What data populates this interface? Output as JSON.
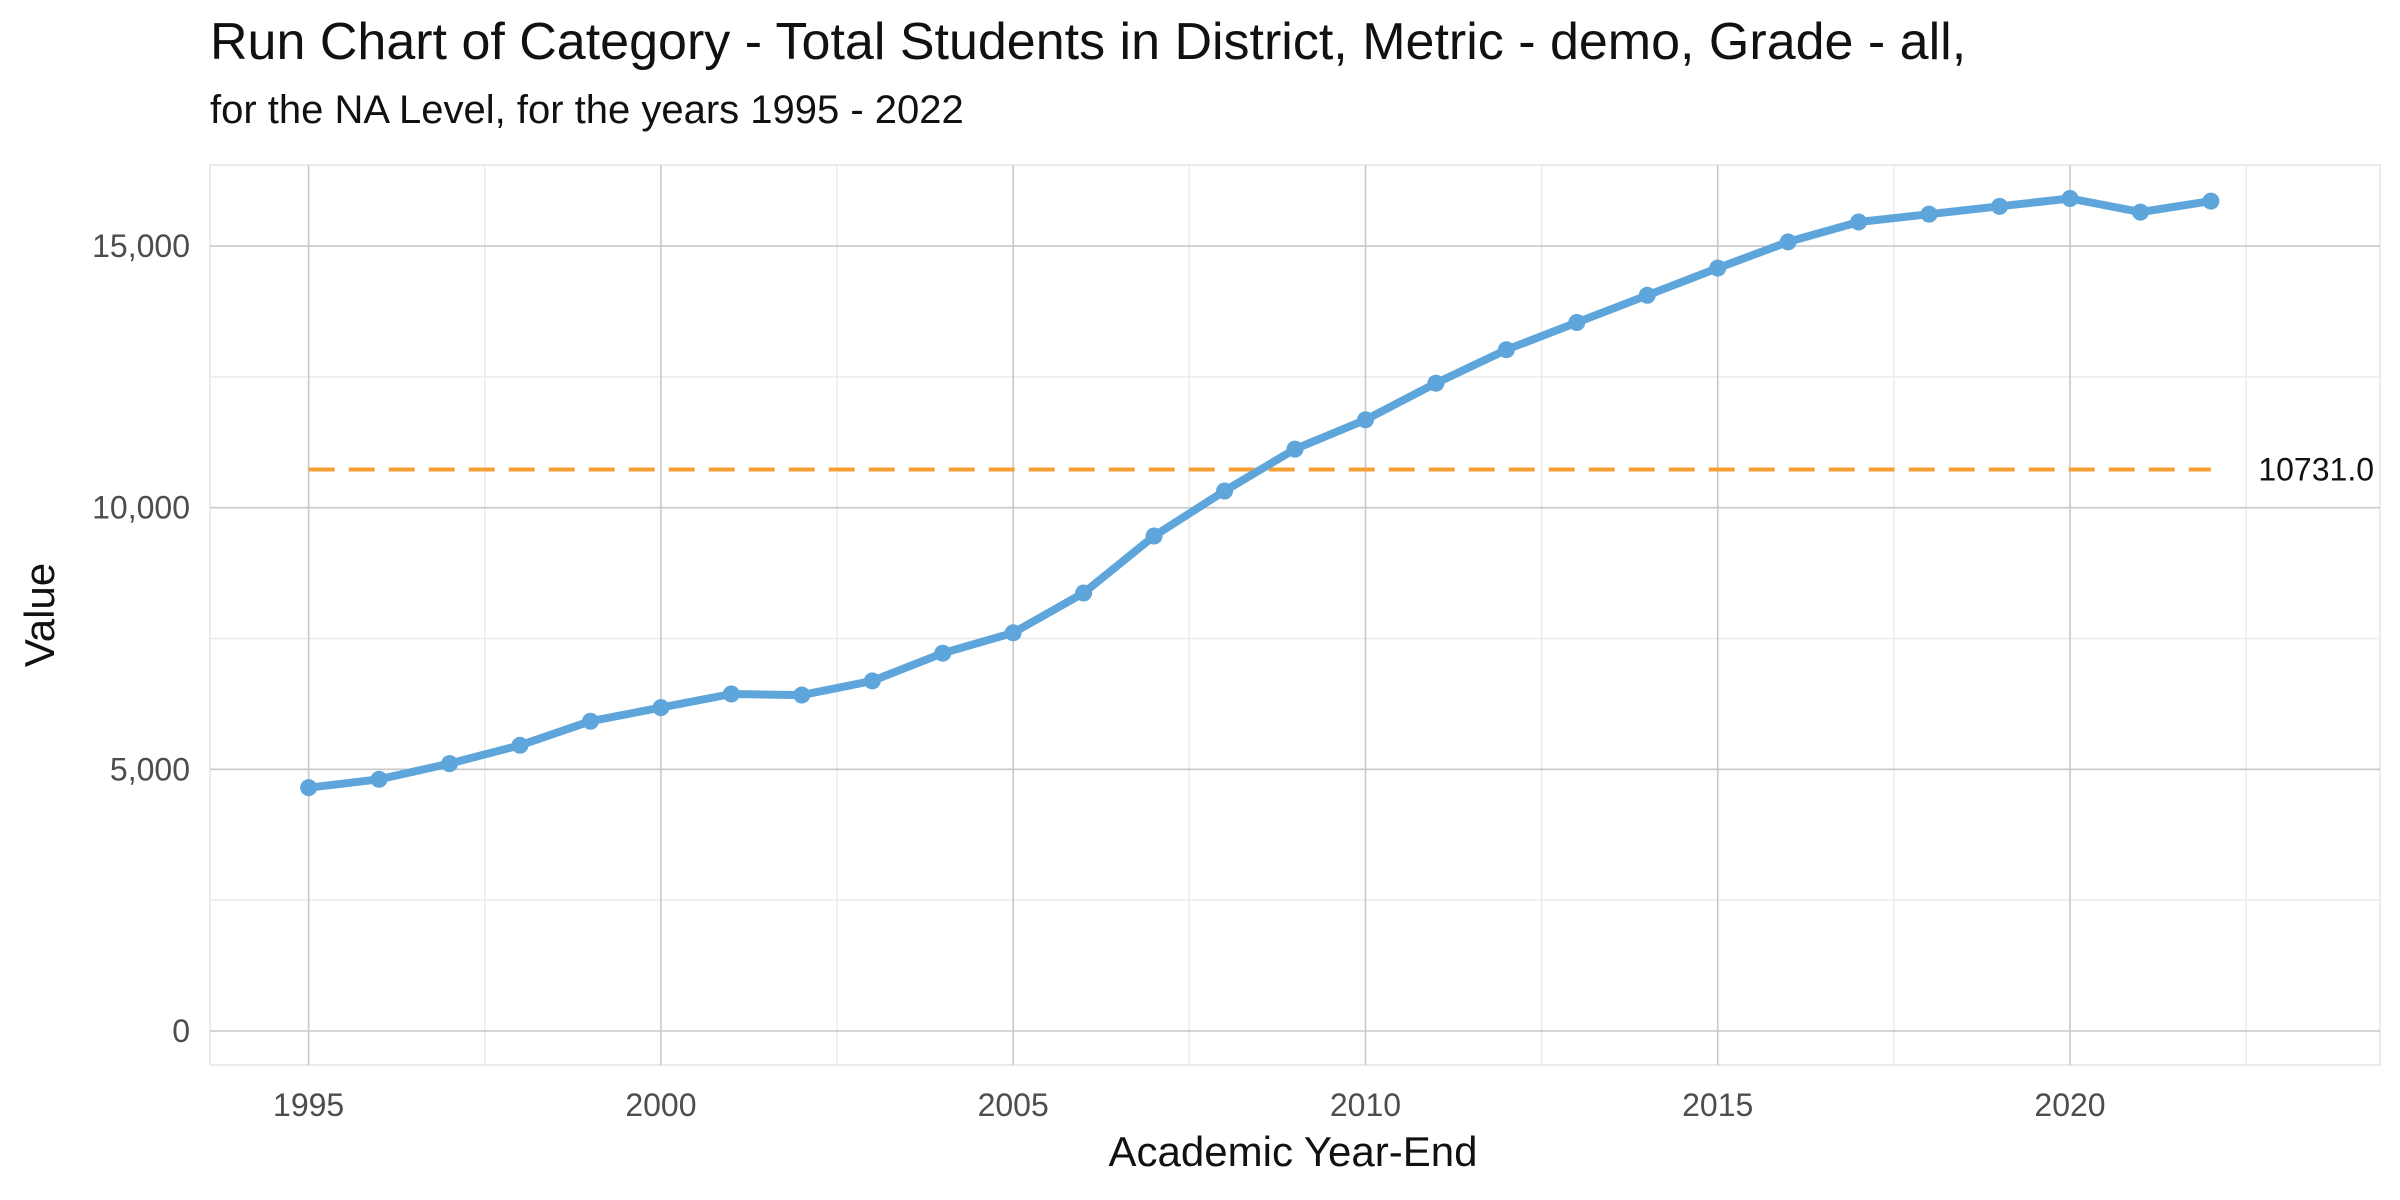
{
  "chart_data": {
    "type": "line",
    "title": "Run Chart of Category - Total Students in District, Metric - demo, Grade - all,",
    "subtitle": "for the NA Level, for the years 1995 - 2022",
    "xlabel": "Academic Year-End",
    "ylabel": "Value",
    "x": [
      1995,
      1996,
      1997,
      1998,
      1999,
      2000,
      2001,
      2002,
      2003,
      2004,
      2005,
      2006,
      2007,
      2008,
      2009,
      2010,
      2011,
      2012,
      2013,
      2014,
      2015,
      2016,
      2017,
      2018,
      2019,
      2020,
      2021,
      2022
    ],
    "series": [
      {
        "values": [
          4650,
          4810,
          5110,
          5460,
          5920,
          6180,
          6440,
          6420,
          6690,
          7220,
          7610,
          8370,
          9460,
          10320,
          11120,
          11680,
          12380,
          13020,
          13540,
          14060,
          14580,
          15080,
          15460,
          15610,
          15760,
          15910,
          15650,
          15860
        ],
        "color": "#5da5da"
      }
    ],
    "reference_line": {
      "value": 10731.0,
      "label": "10731.0",
      "color": "#f5a030",
      "style": "dashed"
    },
    "xlim": [
      1993.6,
      2024.4
    ],
    "ylim": [
      -650,
      16550
    ],
    "x_ticks": [
      1995,
      2000,
      2005,
      2010,
      2015,
      2020
    ],
    "x_tick_labels": [
      "1995",
      "2000",
      "2005",
      "2010",
      "2015",
      "2020"
    ],
    "y_ticks": [
      0,
      5000,
      10000,
      15000
    ],
    "y_tick_labels": [
      "0",
      "5,000",
      "10,000",
      "15,000"
    ],
    "grid": true,
    "legend": "none"
  }
}
